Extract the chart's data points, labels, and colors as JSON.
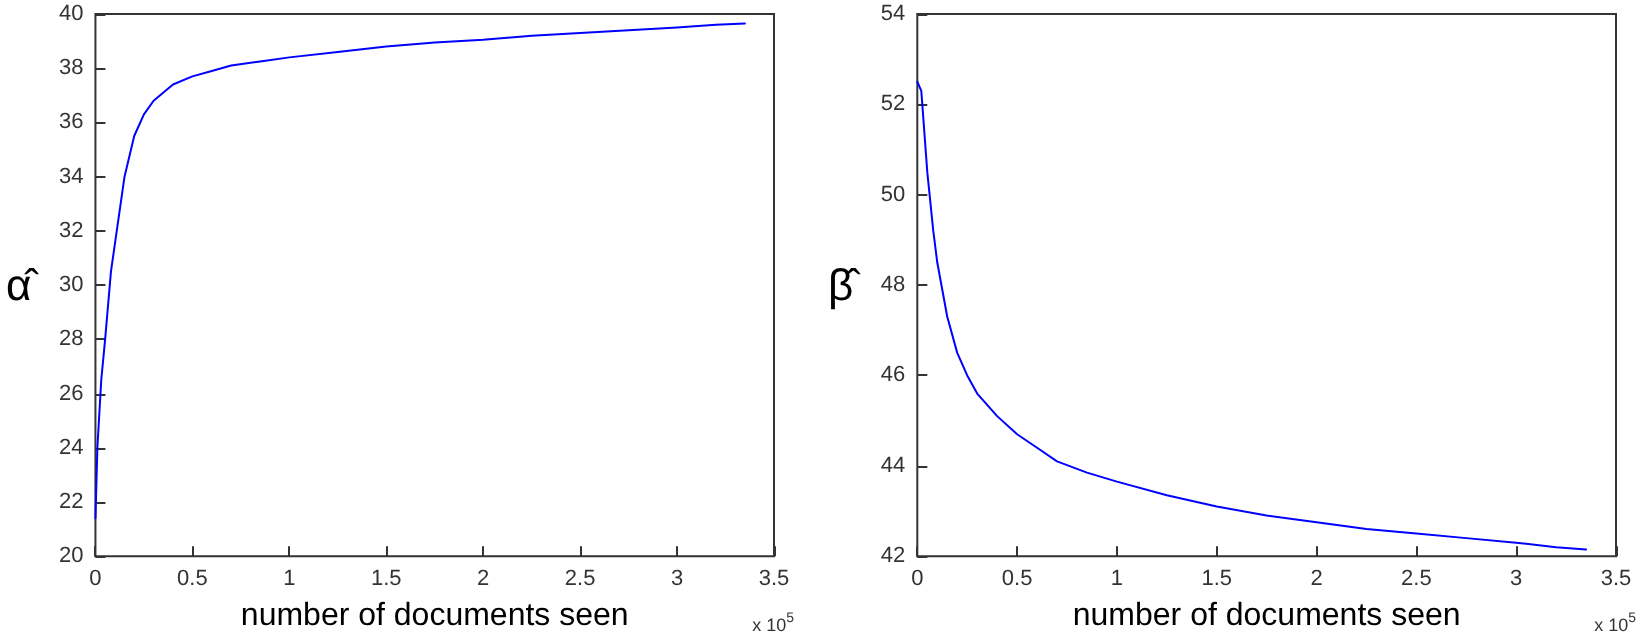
{
  "chart_data": [
    {
      "type": "line",
      "xlabel": "number of documents seen",
      "ylabel": "α̂",
      "annotations": [
        "x 10$^{5}$"
      ],
      "series": [
        {
          "color": "#0000ff",
          "x": [
            0,
            0.01,
            0.03,
            0.05,
            0.08,
            0.1,
            0.15,
            0.2,
            0.25,
            0.3,
            0.4,
            0.5,
            0.6,
            0.7,
            0.85,
            1,
            1.25,
            1.5,
            1.75,
            2,
            2.25,
            2.5,
            2.75,
            3,
            3.2,
            3.35
          ],
          "values": [
            21.4,
            24,
            26.5,
            28,
            30.5,
            31.5,
            34,
            35.5,
            36.3,
            36.8,
            37.4,
            37.7,
            37.9,
            38.1,
            38.25,
            38.4,
            38.6,
            38.8,
            38.95,
            39.05,
            39.2,
            39.3,
            39.4,
            39.5,
            39.6,
            39.65
          ]
        }
      ],
      "xlim": [
        0,
        3.5
      ],
      "xticks": [
        0,
        0.5,
        1,
        1.5,
        2,
        2.5,
        3,
        3.5
      ],
      "ylim": [
        20,
        40
      ],
      "yticks": [
        20,
        22,
        24,
        26,
        28,
        30,
        32,
        34,
        36,
        38,
        40
      ],
      "marker": "none",
      "line_style": "solid"
    },
    {
      "type": "line",
      "xlabel": "number of documents seen",
      "ylabel": "β̂",
      "annotations": [
        "x 10$^{5}$"
      ],
      "series": [
        {
          "color": "#0000ff",
          "x": [
            0,
            0.02,
            0.05,
            0.08,
            0.1,
            0.15,
            0.2,
            0.25,
            0.3,
            0.4,
            0.5,
            0.6,
            0.7,
            0.85,
            1,
            1.25,
            1.5,
            1.75,
            2,
            2.25,
            2.5,
            2.75,
            3,
            3.2,
            3.35
          ],
          "values": [
            52.5,
            52.3,
            50.5,
            49.2,
            48.5,
            47.3,
            46.5,
            46,
            45.6,
            45.1,
            44.7,
            44.4,
            44.1,
            43.85,
            43.65,
            43.35,
            43.1,
            42.9,
            42.75,
            42.6,
            42.5,
            42.4,
            42.3,
            42.2,
            42.15
          ]
        }
      ],
      "xlim": [
        0,
        3.5
      ],
      "xticks": [
        0,
        0.5,
        1,
        1.5,
        2,
        2.5,
        3,
        3.5
      ],
      "ylim": [
        42,
        54
      ],
      "yticks": [
        42,
        44,
        46,
        48,
        50,
        52,
        54
      ],
      "marker": "none",
      "line_style": "solid"
    }
  ]
}
